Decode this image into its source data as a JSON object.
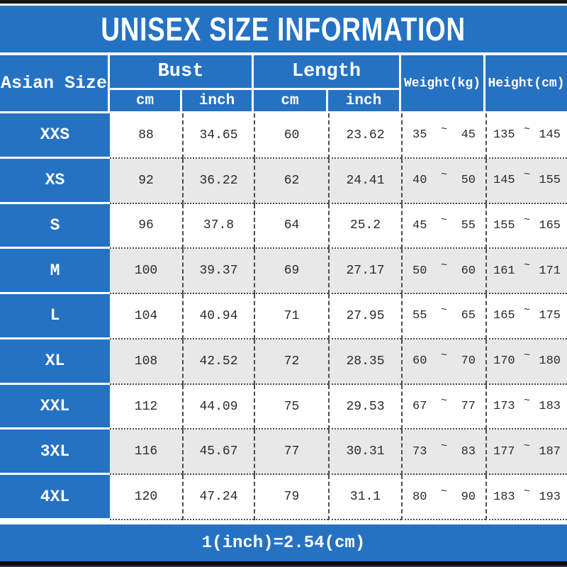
{
  "title": "UNISEX SIZE INFORMATION",
  "footer_note": "1(inch)=2.54(cm)",
  "colors": {
    "band_blue": "#2572c3",
    "row_alt_gray": "#e8e8e8",
    "top_bar_black": "#151515",
    "text_white": "#ffffff",
    "text_dark": "#2b2b2b"
  },
  "table": {
    "col_size_label": "Asian Size",
    "group_bust_label": "Bust",
    "group_length_label": "Length",
    "sub_cm_label": "cm",
    "sub_inch_label": "inch",
    "col_weight_label": "Weight(kg)",
    "col_height_label": "Height(cm)",
    "tilde": "~",
    "rows": [
      {
        "size": "XXS",
        "bust_cm": "88",
        "bust_inch": "34.65",
        "length_cm": "60",
        "length_inch": "23.62",
        "weight_min": "35",
        "weight_max": "45",
        "height_min": "135",
        "height_max": "145"
      },
      {
        "size": "XS",
        "bust_cm": "92",
        "bust_inch": "36.22",
        "length_cm": "62",
        "length_inch": "24.41",
        "weight_min": "40",
        "weight_max": "50",
        "height_min": "145",
        "height_max": "155"
      },
      {
        "size": "S",
        "bust_cm": "96",
        "bust_inch": "37.8",
        "length_cm": "64",
        "length_inch": "25.2",
        "weight_min": "45",
        "weight_max": "55",
        "height_min": "155",
        "height_max": "165"
      },
      {
        "size": "M",
        "bust_cm": "100",
        "bust_inch": "39.37",
        "length_cm": "69",
        "length_inch": "27.17",
        "weight_min": "50",
        "weight_max": "60",
        "height_min": "161",
        "height_max": "171"
      },
      {
        "size": "L",
        "bust_cm": "104",
        "bust_inch": "40.94",
        "length_cm": "71",
        "length_inch": "27.95",
        "weight_min": "55",
        "weight_max": "65",
        "height_min": "165",
        "height_max": "175"
      },
      {
        "size": "XL",
        "bust_cm": "108",
        "bust_inch": "42.52",
        "length_cm": "72",
        "length_inch": "28.35",
        "weight_min": "60",
        "weight_max": "70",
        "height_min": "170",
        "height_max": "180"
      },
      {
        "size": "XXL",
        "bust_cm": "112",
        "bust_inch": "44.09",
        "length_cm": "75",
        "length_inch": "29.53",
        "weight_min": "67",
        "weight_max": "77",
        "height_min": "173",
        "height_max": "183"
      },
      {
        "size": "3XL",
        "bust_cm": "116",
        "bust_inch": "45.67",
        "length_cm": "77",
        "length_inch": "30.31",
        "weight_min": "73",
        "weight_max": "83",
        "height_min": "177",
        "height_max": "187"
      },
      {
        "size": "4XL",
        "bust_cm": "120",
        "bust_inch": "47.24",
        "length_cm": "79",
        "length_inch": "31.1",
        "weight_min": "80",
        "weight_max": "90",
        "height_min": "183",
        "height_max": "193"
      }
    ]
  },
  "chart_data": {
    "type": "table",
    "title": "UNISEX SIZE INFORMATION",
    "columns": [
      "Asian Size",
      "Bust cm",
      "Bust inch",
      "Length cm",
      "Length inch",
      "Weight(kg)",
      "Height(cm)"
    ],
    "rows": [
      [
        "XXS",
        88,
        34.65,
        60,
        23.62,
        "35~45",
        "135~145"
      ],
      [
        "XS",
        92,
        36.22,
        62,
        24.41,
        "40~50",
        "145~155"
      ],
      [
        "S",
        96,
        37.8,
        64,
        25.2,
        "45~55",
        "155~165"
      ],
      [
        "M",
        100,
        39.37,
        69,
        27.17,
        "50~60",
        "161~171"
      ],
      [
        "L",
        104,
        40.94,
        71,
        27.95,
        "55~65",
        "165~175"
      ],
      [
        "XL",
        108,
        42.52,
        72,
        28.35,
        "60~70",
        "170~180"
      ],
      [
        "XXL",
        112,
        44.09,
        75,
        29.53,
        "67~77",
        "173~183"
      ],
      [
        "3XL",
        116,
        45.67,
        77,
        30.31,
        "73~83",
        "177~187"
      ],
      [
        "4XL",
        120,
        47.24,
        79,
        31.1,
        "80~90",
        "183~193"
      ]
    ],
    "note": "1(inch)=2.54(cm)"
  }
}
